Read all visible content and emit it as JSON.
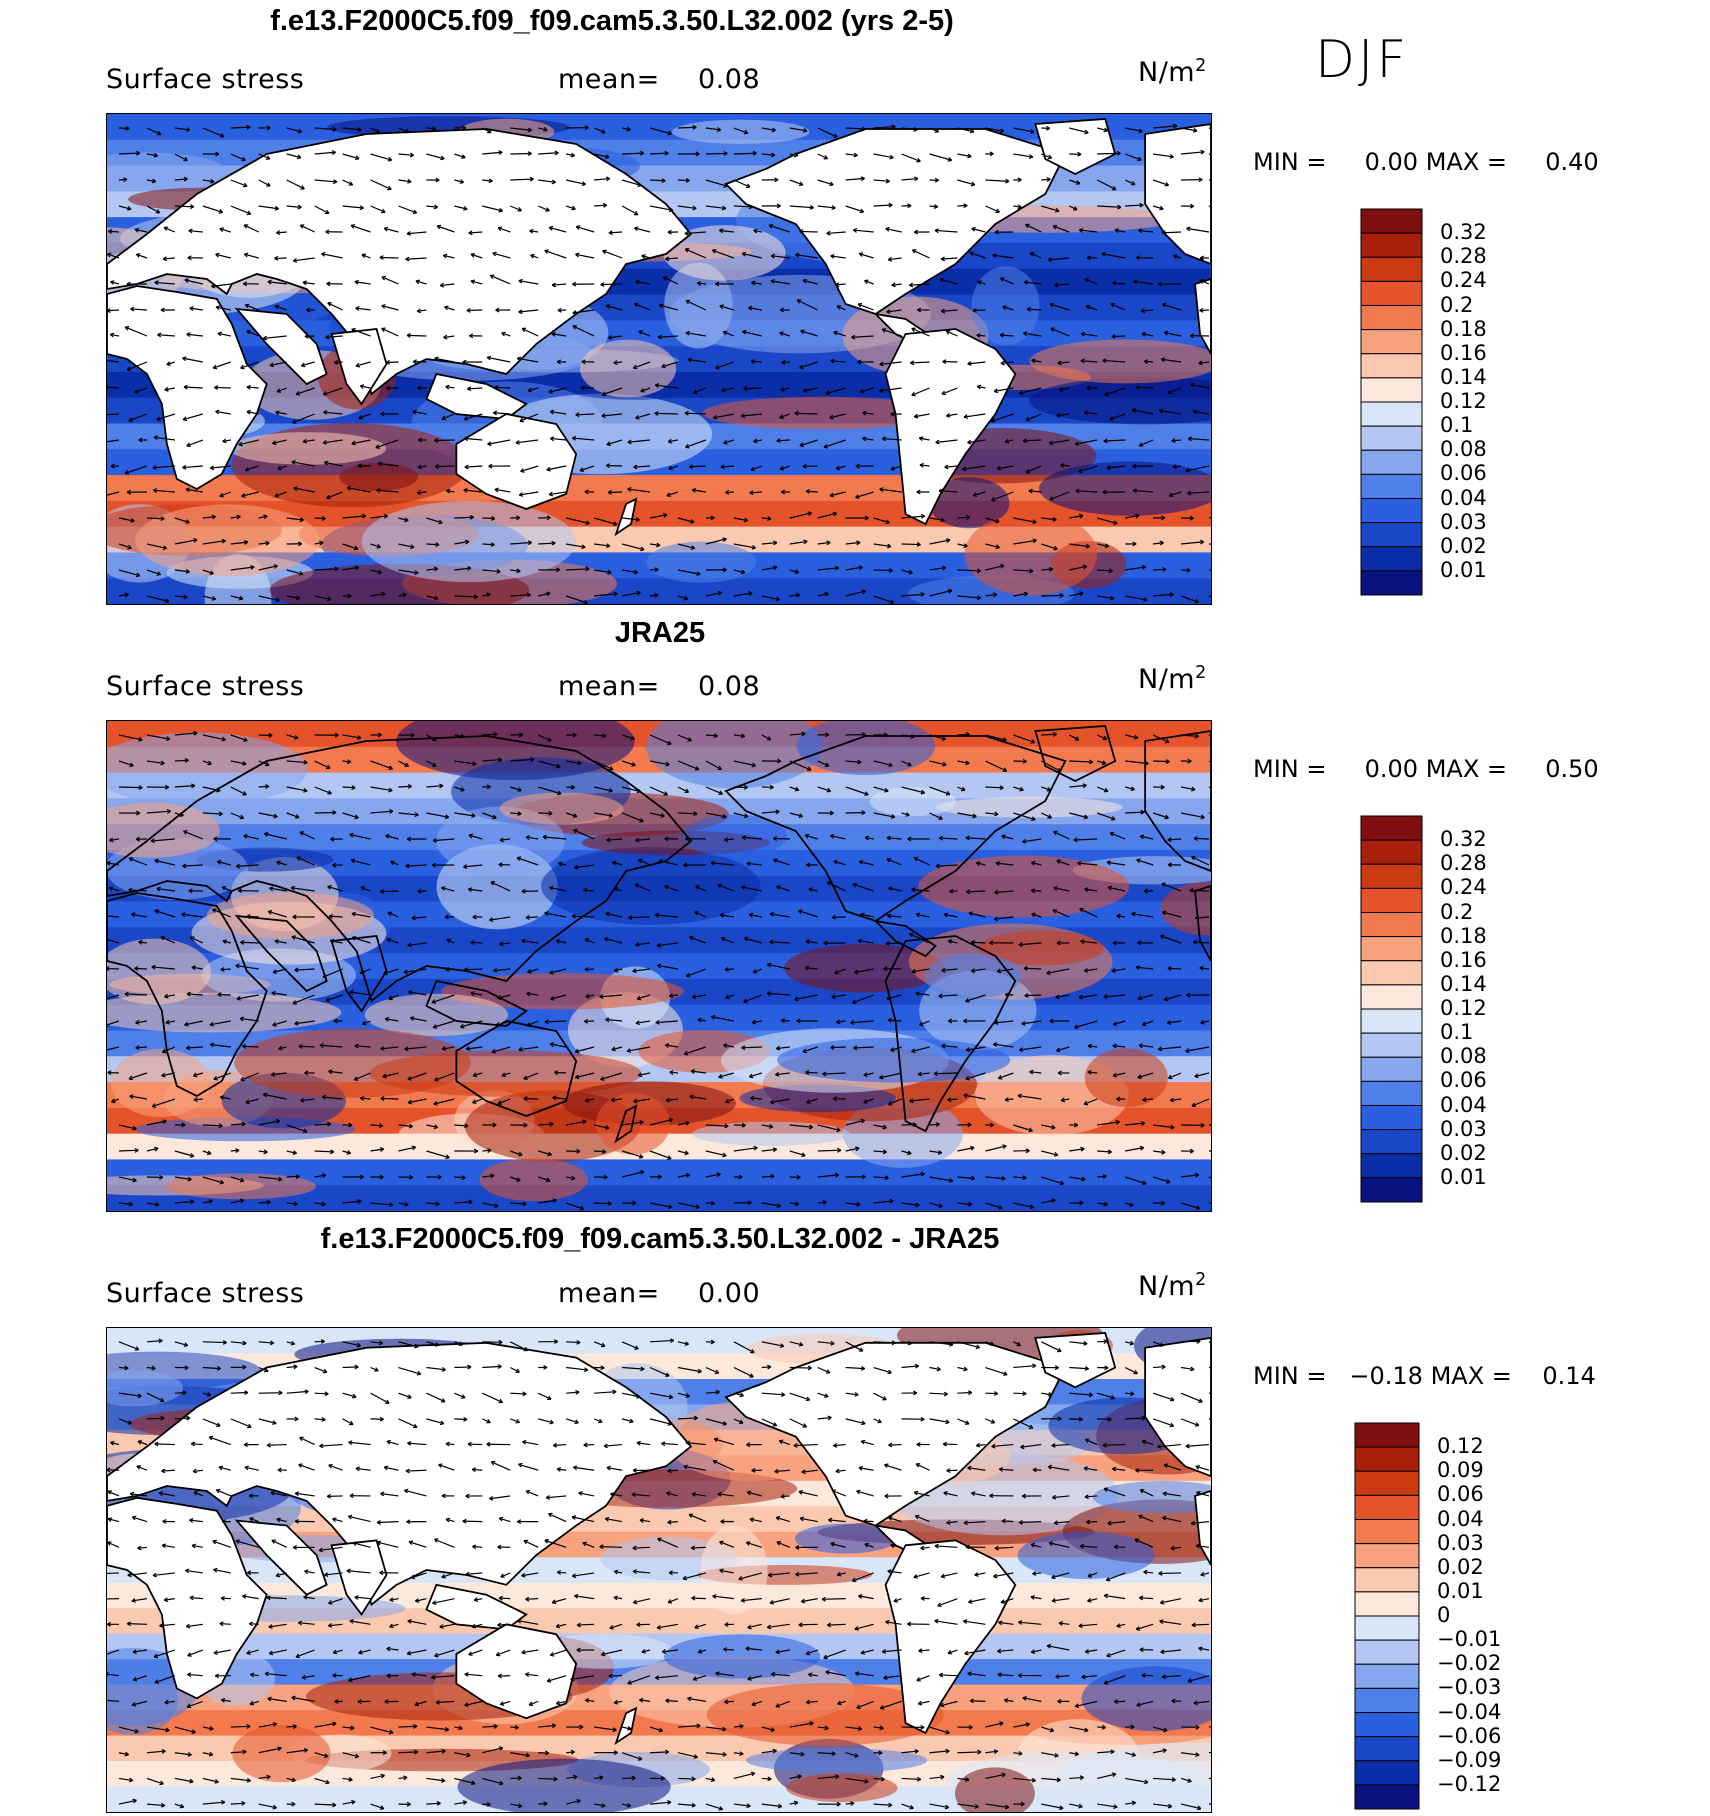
{
  "season": "DJF",
  "field_name": "Surface stress",
  "mean_label": "mean=",
  "units_base": "N/m",
  "units_exp": "2",
  "colors": {
    "positive_scale": [
      "#0a1280",
      "#0a2ea8",
      "#1a47c8",
      "#2a5fe0",
      "#4f7fe8",
      "#86a6ee",
      "#b3c7f2",
      "#d9e6f8",
      "#fde8dc",
      "#fbc9b0",
      "#f8a27f",
      "#f27a4e",
      "#e5532a",
      "#cc3a14",
      "#a81f0a",
      "#801010"
    ],
    "diff_scale": [
      "#0a1280",
      "#0a2ea8",
      "#1a47c8",
      "#2a5fe0",
      "#4f7fe8",
      "#86a6ee",
      "#b3c7f2",
      "#d9e6f8",
      "#fde8dc",
      "#fbc9b0",
      "#f8a27f",
      "#f27a4e",
      "#e5532a",
      "#cc3a14",
      "#a81f0a",
      "#801010"
    ],
    "land": "#ffffff"
  },
  "panels": [
    {
      "title": "f.e13.F2000C5.f09_f09.cam5.3.50.L32.002 (yrs 2-5)",
      "mean": "0.08",
      "min_label": "MIN =",
      "min": "0.00",
      "max_label": "MAX =",
      "max": "0.40",
      "colorbar_labels": [
        "0.32",
        "0.28",
        "0.24",
        "0.2",
        "0.18",
        "0.16",
        "0.14",
        "0.12",
        "0.1",
        "0.08",
        "0.06",
        "0.04",
        "0.03",
        "0.02",
        "0.01"
      ]
    },
    {
      "title": "JRA25",
      "mean": "0.08",
      "min_label": "MIN =",
      "min": "0.00",
      "max_label": "MAX =",
      "max": "0.50",
      "colorbar_labels": [
        "0.32",
        "0.28",
        "0.24",
        "0.2",
        "0.18",
        "0.16",
        "0.14",
        "0.12",
        "0.1",
        "0.08",
        "0.06",
        "0.04",
        "0.03",
        "0.02",
        "0.01"
      ]
    },
    {
      "title": "f.e13.F2000C5.f09_f09.cam5.3.50.L32.002 - JRA25",
      "mean": "0.00",
      "min_label": "MIN =",
      "min": "−0.18",
      "max_label": "MAX =",
      "max": "0.14",
      "colorbar_labels": [
        "0.12",
        "0.09",
        "0.06",
        "0.04",
        "0.03",
        "0.02",
        "0.01",
        "0",
        "−0.01",
        "−0.02",
        "−0.03",
        "−0.04",
        "−0.06",
        "−0.09",
        "−0.12"
      ]
    }
  ]
}
